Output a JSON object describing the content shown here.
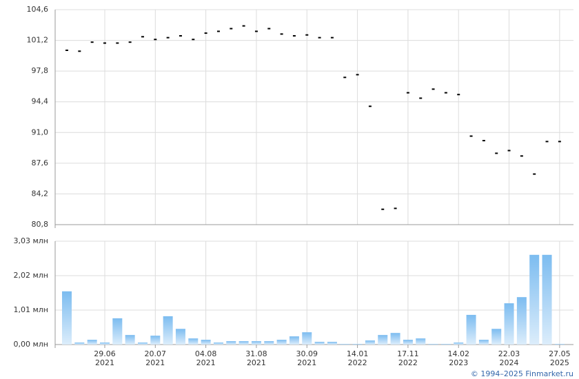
{
  "chart_data": [
    {
      "type": "tick",
      "color": "#000000",
      "values": [
        100.1,
        100.0,
        101.0,
        100.9,
        100.9,
        101.0,
        101.6,
        101.3,
        101.5,
        101.7,
        101.3,
        102.0,
        102.2,
        102.5,
        102.8,
        102.2,
        102.5,
        101.9,
        101.7,
        101.8,
        101.5,
        101.5,
        97.1,
        97.4,
        93.9,
        82.5,
        82.6,
        95.4,
        94.8,
        95.8,
        95.4,
        95.2,
        90.6,
        90.1,
        88.7,
        89.0,
        88.4,
        86.4,
        90.0,
        90.0
      ],
      "ylim": [
        80.8,
        104.6
      ],
      "yticks": [
        {
          "value": 80.8,
          "label": "80,8"
        },
        {
          "value": 84.2,
          "label": "84,2"
        },
        {
          "value": 87.6,
          "label": "87,6"
        },
        {
          "value": 91.0,
          "label": "91,0"
        },
        {
          "value": 94.4,
          "label": "94,4"
        },
        {
          "value": 97.8,
          "label": "97,8"
        },
        {
          "value": 101.2,
          "label": "101,2"
        },
        {
          "value": 104.6,
          "label": "104,6"
        }
      ],
      "grid": true
    },
    {
      "type": "bar",
      "color": "#7cbcf0",
      "categories": [
        null,
        null,
        null,
        "29.06\n2021",
        null,
        null,
        null,
        "20.07\n2021",
        null,
        null,
        null,
        "04.08\n2021",
        null,
        null,
        null,
        "31.08\n2021",
        null,
        null,
        null,
        "30.09\n2021",
        null,
        null,
        null,
        "14.01\n2022",
        null,
        null,
        null,
        "17.11\n2022",
        null,
        null,
        null,
        "14.02\n2023",
        null,
        null,
        null,
        "22.03\n2024",
        null,
        null,
        null,
        "27.05\n2025"
      ],
      "values": [
        1.56,
        0.06,
        0.14,
        0.06,
        0.77,
        0.28,
        0.06,
        0.26,
        0.83,
        0.46,
        0.18,
        0.14,
        0.06,
        0.1,
        0.1,
        0.1,
        0.1,
        0.14,
        0.24,
        0.36,
        0.08,
        0.08,
        0.02,
        0.02,
        0.12,
        0.28,
        0.34,
        0.14,
        0.18,
        0.02,
        0.02,
        0.06,
        0.87,
        0.14,
        0.46,
        1.21,
        1.39,
        2.63,
        2.63,
        0.02
      ],
      "ylim": [
        0,
        3.03
      ],
      "yticks": [
        {
          "value": 0,
          "label": "0,00 млн"
        },
        {
          "value": 1.01,
          "label": "1,01 млн"
        },
        {
          "value": 2.02,
          "label": "2,02 млн"
        },
        {
          "value": 3.03,
          "label": "3,03 млн"
        }
      ],
      "grid": true
    }
  ],
  "footer": "© 1994–2025 Finmarket.ru"
}
